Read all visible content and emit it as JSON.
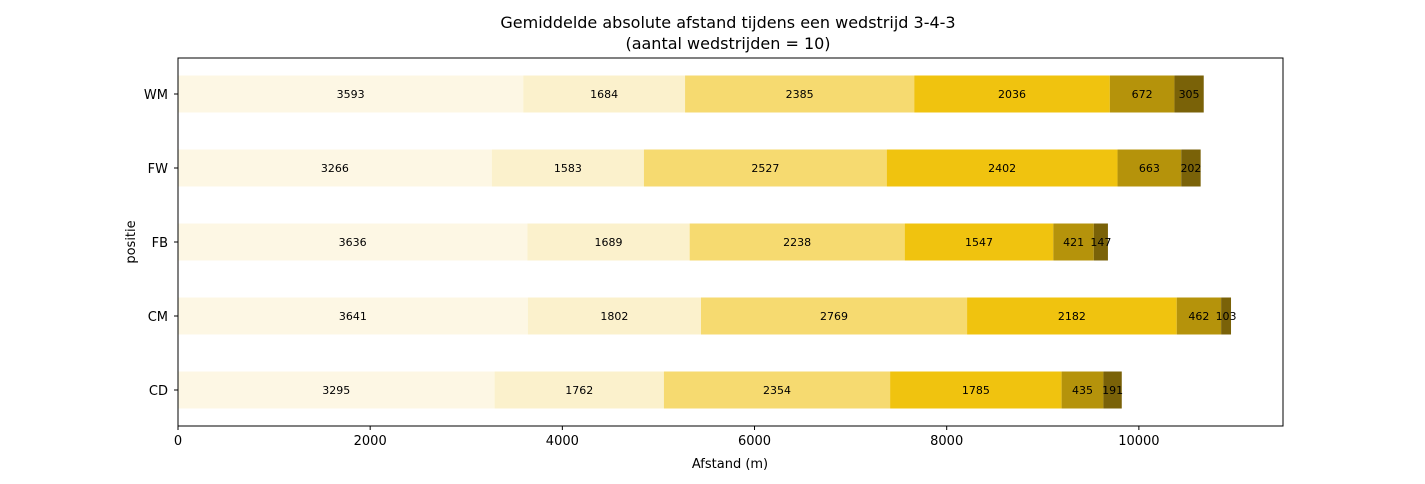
{
  "chart_data": {
    "type": "bar",
    "orientation": "horizontal",
    "stacked": true,
    "title": "Gemiddelde absolute afstand tijdens een wedstrijd 3-4-3",
    "subtitle": "(aantal wedstrijden = 10)",
    "xlabel": "Afstand (m)",
    "ylabel": "positie",
    "xlim": [
      0,
      11500
    ],
    "xticks": [
      0,
      2000,
      4000,
      6000,
      8000,
      10000
    ],
    "xtick_labels": [
      "0",
      "2000",
      "4000",
      "6000",
      "8000",
      "10000"
    ],
    "grid": false,
    "legend": null,
    "categories": [
      "CD",
      "CM",
      "FB",
      "FW",
      "WM"
    ],
    "series": [
      {
        "color": "#fdf7e4",
        "values": [
          3295,
          3641,
          3636,
          3266,
          3593
        ]
      },
      {
        "color": "#fbf1cc",
        "values": [
          1762,
          1802,
          1689,
          1583,
          1684
        ]
      },
      {
        "color": "#f6da70",
        "values": [
          2354,
          2769,
          2238,
          2527,
          2385
        ]
      },
      {
        "color": "#f0c30f",
        "values": [
          1785,
          2182,
          1547,
          2402,
          2036
        ]
      },
      {
        "color": "#b5930b",
        "values": [
          435,
          462,
          421,
          663,
          672
        ]
      },
      {
        "color": "#7a6208",
        "values": [
          191,
          103,
          147,
          202,
          305
        ]
      }
    ]
  }
}
